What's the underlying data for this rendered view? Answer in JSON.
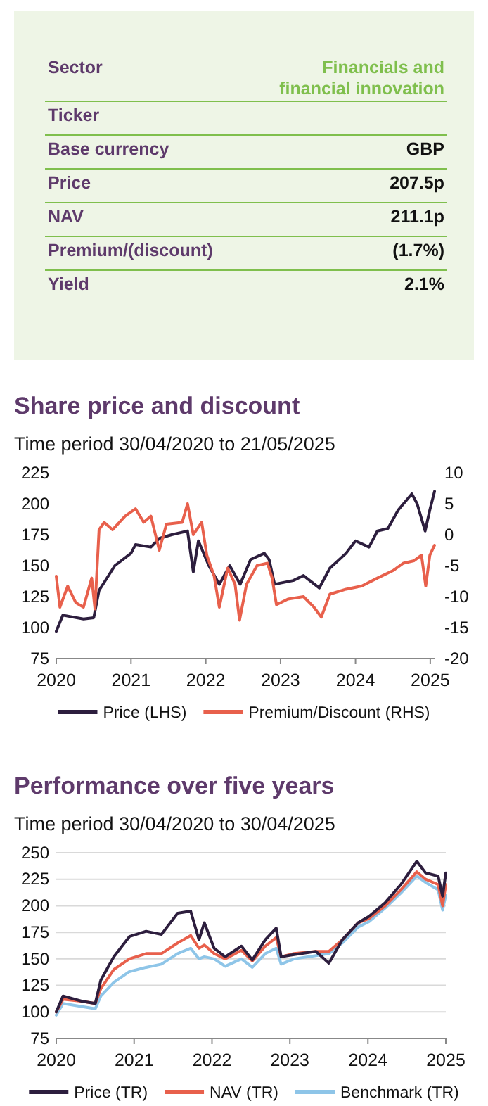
{
  "chart_data": [
    {
      "type": "other",
      "categories": [
        "Sector",
        "Ticker",
        "Base currency",
        "Price",
        "NAV",
        "Premium/(discount)",
        "Yield"
      ],
      "value_labels": [
        "Financials and financial innovation",
        null,
        "GBP",
        "207.5p",
        "211.1p",
        "(1.7%)",
        "2.1%"
      ]
    },
    {
      "type": "line",
      "title": "Share price and discount",
      "subtitle": "Time period 30/04/2020 to 21/05/2025",
      "legend": "bottom",
      "xlim": [
        "2020-04-30",
        "2025-05-21"
      ],
      "xticks": [
        {
          "value": "2020-04-30",
          "label": "2020"
        },
        {
          "value": "2021-04-30",
          "label": "2021"
        },
        {
          "value": "2022-04-30",
          "label": "2022"
        },
        {
          "value": "2023-04-30",
          "label": "2023"
        },
        {
          "value": "2024-04-30",
          "label": "2024"
        },
        {
          "value": "2025-04-30",
          "label": "2025"
        }
      ],
      "ylim": [
        75,
        225
      ],
      "yticks": [
        75,
        100,
        125,
        150,
        175,
        200,
        225
      ],
      "y2lim": [
        -20,
        10
      ],
      "y2ticks": [
        -20,
        -15,
        -10,
        -5,
        0,
        5,
        10
      ],
      "series": [
        {
          "name": "Price (LHS)",
          "color": "#2d1e3e",
          "x": [
            "2020-04-30",
            "2020-06-01",
            "2020-09-10",
            "2020-10-30",
            "2020-11-25",
            "2021-02-10",
            "2021-04-30",
            "2021-05-22",
            "2021-08-05",
            "2021-09-15",
            "2021-11-15",
            "2022-01-31",
            "2022-02-28",
            "2022-03-25",
            "2022-05-15",
            "2022-07-05",
            "2022-08-25",
            "2022-10-15",
            "2022-12-05",
            "2023-02-10",
            "2023-03-05",
            "2023-04-01",
            "2023-07-01",
            "2023-08-20",
            "2023-11-05",
            "2023-12-27",
            "2024-03-15",
            "2024-04-30",
            "2024-07-05",
            "2024-08-15",
            "2024-10-05",
            "2024-11-25",
            "2025-01-30",
            "2025-02-25",
            "2025-04-05",
            "2025-04-28",
            "2025-05-21"
          ],
          "values": [
            97,
            110,
            107,
            108,
            130,
            150,
            160,
            167,
            165,
            172,
            175,
            178,
            145,
            170,
            150,
            135,
            150,
            135,
            155,
            160,
            155,
            135,
            138,
            142,
            132,
            148,
            160,
            170,
            165,
            178,
            180,
            195,
            208,
            200,
            178,
            195,
            210
          ]
        },
        {
          "name": "Premium/Discount (RHS)",
          "color": "#e8604c",
          "axis": "y2",
          "x": [
            "2020-04-30",
            "2020-05-18",
            "2020-06-25",
            "2020-08-04",
            "2020-09-10",
            "2020-10-20",
            "2020-11-05",
            "2020-11-25",
            "2020-12-20",
            "2021-01-30",
            "2021-04-01",
            "2021-05-22",
            "2021-07-01",
            "2021-08-05",
            "2021-09-15",
            "2021-10-20",
            "2022-01-05",
            "2022-01-31",
            "2022-02-28",
            "2022-04-10",
            "2022-05-05",
            "2022-06-10",
            "2022-07-05",
            "2022-08-15",
            "2022-09-20",
            "2022-10-12",
            "2022-11-15",
            "2023-01-05",
            "2023-02-25",
            "2023-03-20",
            "2023-04-10",
            "2023-06-05",
            "2023-08-20",
            "2023-10-10",
            "2023-11-15",
            "2023-12-27",
            "2024-03-15",
            "2024-05-30",
            "2024-08-15",
            "2024-10-30",
            "2024-12-20",
            "2025-02-10",
            "2025-03-18",
            "2025-04-08",
            "2025-04-28",
            "2025-05-21"
          ],
          "values": [
            -6.7,
            -11.7,
            -8.3,
            -11,
            -11.7,
            -7,
            -12,
            0.8,
            2,
            0.8,
            3,
            4.2,
            2,
            3,
            -2.5,
            1.7,
            2,
            5,
            0,
            2,
            -3.3,
            -6.7,
            -11.7,
            -5.4,
            -8,
            -13.8,
            -8,
            -5,
            -4.6,
            -7,
            -11.3,
            -10.4,
            -10,
            -11.7,
            -13.3,
            -9.6,
            -8.8,
            -8.3,
            -7,
            -5.8,
            -4.6,
            -4.2,
            -3.3,
            -8.3,
            -3.3,
            -1.7
          ]
        }
      ]
    },
    {
      "type": "line",
      "title": "Performance over five years",
      "subtitle": "Time period 30/04/2020 to 30/04/2025",
      "legend": "bottom",
      "grid": "y",
      "xlim": [
        "2020-04-30",
        "2025-04-30"
      ],
      "xticks": [
        {
          "value": "2020-04-30",
          "label": "2020"
        },
        {
          "value": "2021-04-30",
          "label": "2021"
        },
        {
          "value": "2022-04-30",
          "label": "2022"
        },
        {
          "value": "2023-04-30",
          "label": "2023"
        },
        {
          "value": "2024-04-30",
          "label": "2024"
        },
        {
          "value": "2025-04-30",
          "label": "2025"
        }
      ],
      "ylim": [
        75,
        250
      ],
      "yticks": [
        75,
        100,
        125,
        150,
        175,
        200,
        225,
        250
      ],
      "x": [
        "2020-04-30",
        "2020-06-01",
        "2020-08-30",
        "2020-10-30",
        "2020-11-25",
        "2021-01-25",
        "2021-04-08",
        "2021-06-25",
        "2021-09-05",
        "2021-11-20",
        "2022-01-20",
        "2022-02-28",
        "2022-03-25",
        "2022-05-10",
        "2022-07-01",
        "2022-09-15",
        "2022-11-05",
        "2023-01-05",
        "2023-02-25",
        "2023-03-20",
        "2023-05-20",
        "2023-08-30",
        "2023-10-30",
        "2024-01-01",
        "2024-03-15",
        "2024-05-05",
        "2024-07-20",
        "2024-10-01",
        "2024-12-15",
        "2025-01-25",
        "2025-03-25",
        "2025-04-15",
        "2025-04-30"
      ],
      "series": [
        {
          "name": "Benchmark (TR)",
          "color": "#8ec5e8",
          "values": [
            97,
            108,
            105,
            103,
            115,
            128,
            138,
            142,
            145,
            155,
            160,
            150,
            152,
            150,
            143,
            150,
            142,
            155,
            160,
            145,
            150,
            153,
            155,
            165,
            180,
            185,
            198,
            212,
            228,
            222,
            215,
            196,
            210
          ]
        },
        {
          "name": "NAV (TR)",
          "color": "#e8604c",
          "values": [
            100,
            112,
            110,
            108,
            122,
            140,
            150,
            155,
            155,
            165,
            172,
            160,
            163,
            155,
            150,
            158,
            148,
            162,
            170,
            152,
            155,
            157,
            157,
            168,
            184,
            188,
            200,
            215,
            232,
            225,
            220,
            200,
            220
          ]
        },
        {
          "name": "Price (TR)",
          "color": "#2d1e3e",
          "values": [
            100,
            115,
            110,
            108,
            130,
            152,
            171,
            176,
            173,
            193,
            195,
            168,
            184,
            160,
            152,
            162,
            149,
            168,
            179,
            152,
            154,
            157,
            146,
            168,
            184,
            190,
            203,
            220,
            242,
            231,
            228,
            209,
            231
          ]
        }
      ]
    }
  ]
}
